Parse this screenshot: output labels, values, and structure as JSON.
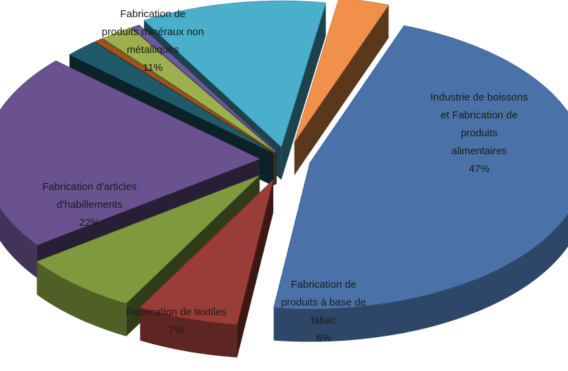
{
  "chart_data": {
    "type": "pie",
    "title": "",
    "slices": [
      {
        "label": "Industrie de boissons et Fabrication de produits alimentaires",
        "label_lines": [
          "Industrie de boissons",
          "et Fabrication de",
          "produits",
          "alimentaires"
        ],
        "value": 47,
        "value_label": "47%",
        "color": "#4A72A8"
      },
      {
        "label": "Fabrication de produits à base de tabac",
        "label_lines": [
          "Fabrication de",
          "produits à base de",
          "tabac"
        ],
        "value": 6,
        "value_label": "6%",
        "color": "#9A3C38"
      },
      {
        "label": "Fabrication de textiles",
        "label_lines": [
          "Fabrication de textiles"
        ],
        "value": 7,
        "value_label": "7%",
        "color": "#7F9A3E"
      },
      {
        "label": "Fabrication d'articles d'habillements",
        "label_lines": [
          "Fabrication d'articles",
          "d'habillements"
        ],
        "value": 22,
        "value_label": "22%",
        "color": "#6A5290"
      },
      {
        "label": "",
        "value": 2,
        "value_label": "",
        "color": "#1F5A6A"
      },
      {
        "label": "",
        "value": 0.5,
        "value_label": "",
        "color": "#A0521C"
      },
      {
        "label": "",
        "value": 2,
        "value_label": "",
        "color": "#9CB050"
      },
      {
        "label": "",
        "value": 0.5,
        "value_label": "",
        "color": "#6E58A0"
      },
      {
        "label": "Fabrication de produits minéraux non métalliques",
        "label_lines": [
          "Fabrication de",
          "produits minéraux non",
          "métalliques"
        ],
        "value": 11,
        "value_label": "11%",
        "color": "#4AAFCB"
      },
      {
        "label": "",
        "value": 3,
        "value_label": "",
        "color": "#F0904A"
      }
    ]
  }
}
